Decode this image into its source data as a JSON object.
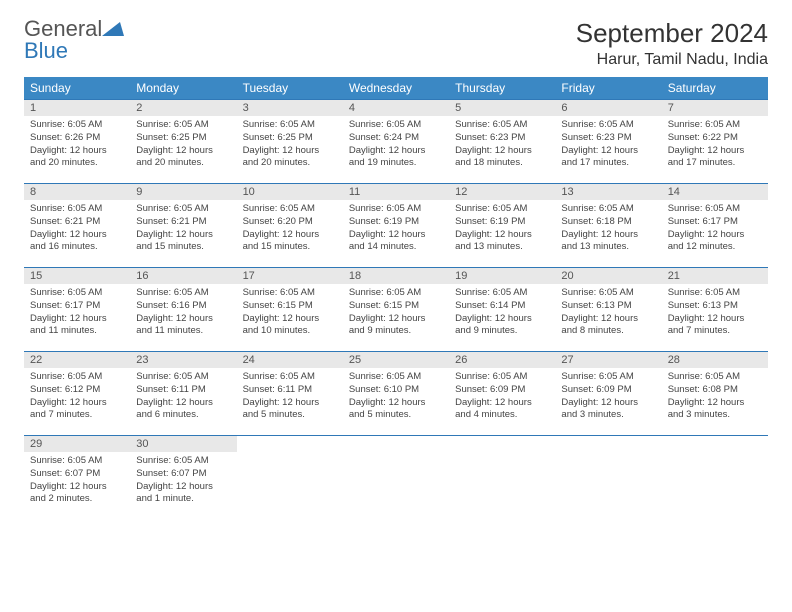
{
  "logo": {
    "word1": "General",
    "word2": "Blue"
  },
  "title": "September 2024",
  "location": "Harur, Tamil Nadu, India",
  "colors": {
    "header_bg": "#3b88c4",
    "header_text": "#ffffff",
    "row_border": "#2f78b7",
    "daynum_bg": "#e8e8e8",
    "body_bg": "#ffffff",
    "text": "#444444",
    "logo_gray": "#555555",
    "logo_blue": "#2f78b7"
  },
  "weekdays": [
    "Sunday",
    "Monday",
    "Tuesday",
    "Wednesday",
    "Thursday",
    "Friday",
    "Saturday"
  ],
  "weeks": [
    [
      {
        "n": "1",
        "sr": "Sunrise: 6:05 AM",
        "ss": "Sunset: 6:26 PM",
        "dl": "Daylight: 12 hours and 20 minutes."
      },
      {
        "n": "2",
        "sr": "Sunrise: 6:05 AM",
        "ss": "Sunset: 6:25 PM",
        "dl": "Daylight: 12 hours and 20 minutes."
      },
      {
        "n": "3",
        "sr": "Sunrise: 6:05 AM",
        "ss": "Sunset: 6:25 PM",
        "dl": "Daylight: 12 hours and 20 minutes."
      },
      {
        "n": "4",
        "sr": "Sunrise: 6:05 AM",
        "ss": "Sunset: 6:24 PM",
        "dl": "Daylight: 12 hours and 19 minutes."
      },
      {
        "n": "5",
        "sr": "Sunrise: 6:05 AM",
        "ss": "Sunset: 6:23 PM",
        "dl": "Daylight: 12 hours and 18 minutes."
      },
      {
        "n": "6",
        "sr": "Sunrise: 6:05 AM",
        "ss": "Sunset: 6:23 PM",
        "dl": "Daylight: 12 hours and 17 minutes."
      },
      {
        "n": "7",
        "sr": "Sunrise: 6:05 AM",
        "ss": "Sunset: 6:22 PM",
        "dl": "Daylight: 12 hours and 17 minutes."
      }
    ],
    [
      {
        "n": "8",
        "sr": "Sunrise: 6:05 AM",
        "ss": "Sunset: 6:21 PM",
        "dl": "Daylight: 12 hours and 16 minutes."
      },
      {
        "n": "9",
        "sr": "Sunrise: 6:05 AM",
        "ss": "Sunset: 6:21 PM",
        "dl": "Daylight: 12 hours and 15 minutes."
      },
      {
        "n": "10",
        "sr": "Sunrise: 6:05 AM",
        "ss": "Sunset: 6:20 PM",
        "dl": "Daylight: 12 hours and 15 minutes."
      },
      {
        "n": "11",
        "sr": "Sunrise: 6:05 AM",
        "ss": "Sunset: 6:19 PM",
        "dl": "Daylight: 12 hours and 14 minutes."
      },
      {
        "n": "12",
        "sr": "Sunrise: 6:05 AM",
        "ss": "Sunset: 6:19 PM",
        "dl": "Daylight: 12 hours and 13 minutes."
      },
      {
        "n": "13",
        "sr": "Sunrise: 6:05 AM",
        "ss": "Sunset: 6:18 PM",
        "dl": "Daylight: 12 hours and 13 minutes."
      },
      {
        "n": "14",
        "sr": "Sunrise: 6:05 AM",
        "ss": "Sunset: 6:17 PM",
        "dl": "Daylight: 12 hours and 12 minutes."
      }
    ],
    [
      {
        "n": "15",
        "sr": "Sunrise: 6:05 AM",
        "ss": "Sunset: 6:17 PM",
        "dl": "Daylight: 12 hours and 11 minutes."
      },
      {
        "n": "16",
        "sr": "Sunrise: 6:05 AM",
        "ss": "Sunset: 6:16 PM",
        "dl": "Daylight: 12 hours and 11 minutes."
      },
      {
        "n": "17",
        "sr": "Sunrise: 6:05 AM",
        "ss": "Sunset: 6:15 PM",
        "dl": "Daylight: 12 hours and 10 minutes."
      },
      {
        "n": "18",
        "sr": "Sunrise: 6:05 AM",
        "ss": "Sunset: 6:15 PM",
        "dl": "Daylight: 12 hours and 9 minutes."
      },
      {
        "n": "19",
        "sr": "Sunrise: 6:05 AM",
        "ss": "Sunset: 6:14 PM",
        "dl": "Daylight: 12 hours and 9 minutes."
      },
      {
        "n": "20",
        "sr": "Sunrise: 6:05 AM",
        "ss": "Sunset: 6:13 PM",
        "dl": "Daylight: 12 hours and 8 minutes."
      },
      {
        "n": "21",
        "sr": "Sunrise: 6:05 AM",
        "ss": "Sunset: 6:13 PM",
        "dl": "Daylight: 12 hours and 7 minutes."
      }
    ],
    [
      {
        "n": "22",
        "sr": "Sunrise: 6:05 AM",
        "ss": "Sunset: 6:12 PM",
        "dl": "Daylight: 12 hours and 7 minutes."
      },
      {
        "n": "23",
        "sr": "Sunrise: 6:05 AM",
        "ss": "Sunset: 6:11 PM",
        "dl": "Daylight: 12 hours and 6 minutes."
      },
      {
        "n": "24",
        "sr": "Sunrise: 6:05 AM",
        "ss": "Sunset: 6:11 PM",
        "dl": "Daylight: 12 hours and 5 minutes."
      },
      {
        "n": "25",
        "sr": "Sunrise: 6:05 AM",
        "ss": "Sunset: 6:10 PM",
        "dl": "Daylight: 12 hours and 5 minutes."
      },
      {
        "n": "26",
        "sr": "Sunrise: 6:05 AM",
        "ss": "Sunset: 6:09 PM",
        "dl": "Daylight: 12 hours and 4 minutes."
      },
      {
        "n": "27",
        "sr": "Sunrise: 6:05 AM",
        "ss": "Sunset: 6:09 PM",
        "dl": "Daylight: 12 hours and 3 minutes."
      },
      {
        "n": "28",
        "sr": "Sunrise: 6:05 AM",
        "ss": "Sunset: 6:08 PM",
        "dl": "Daylight: 12 hours and 3 minutes."
      }
    ],
    [
      {
        "n": "29",
        "sr": "Sunrise: 6:05 AM",
        "ss": "Sunset: 6:07 PM",
        "dl": "Daylight: 12 hours and 2 minutes."
      },
      {
        "n": "30",
        "sr": "Sunrise: 6:05 AM",
        "ss": "Sunset: 6:07 PM",
        "dl": "Daylight: 12 hours and 1 minute."
      },
      null,
      null,
      null,
      null,
      null
    ]
  ]
}
